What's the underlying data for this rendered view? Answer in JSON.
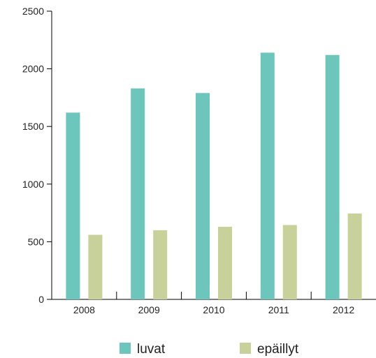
{
  "chart_data": {
    "type": "bar",
    "categories": [
      "2008",
      "2009",
      "2010",
      "2011",
      "2012"
    ],
    "series": [
      {
        "name": "luvat",
        "values": [
          1620,
          1830,
          1790,
          2140,
          2120
        ],
        "color": "#6cc6bc"
      },
      {
        "name": "epäillyt",
        "values": [
          560,
          600,
          630,
          645,
          745
        ],
        "color": "#c8d19a"
      }
    ],
    "yticks": [
      0,
      500,
      1000,
      1500,
      2000,
      2500
    ],
    "ylim": [
      0,
      2500
    ],
    "title": "",
    "xlabel": "",
    "ylabel": "",
    "grid": false,
    "legend_position": "bottom"
  }
}
